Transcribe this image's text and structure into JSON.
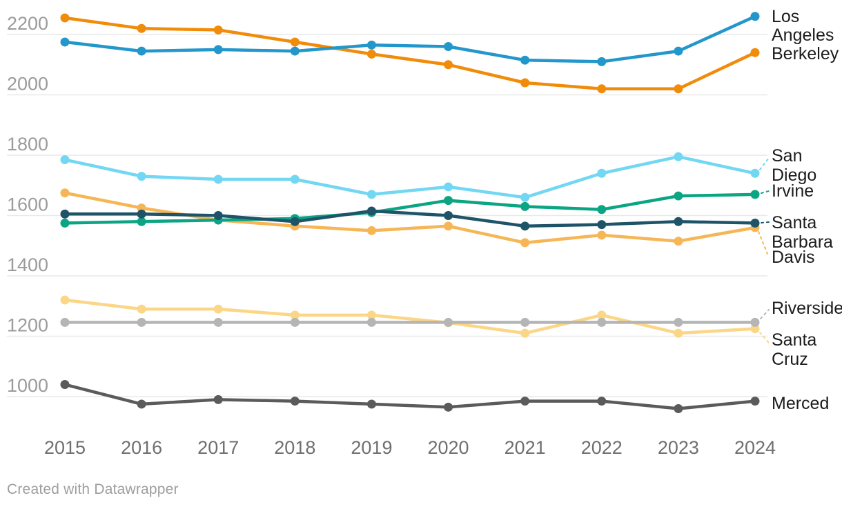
{
  "chart": {
    "footer": "Created with Datawrapper",
    "background": "#ffffff",
    "grid_color": "#e9e9e9",
    "y_tick_color": "#9b9b9b",
    "x_tick_color": "#6f6f6f",
    "label_color": "#1c1c1c"
  },
  "chart_data": {
    "type": "line",
    "x": [
      2015,
      2016,
      2017,
      2018,
      2019,
      2020,
      2021,
      2022,
      2023,
      2024
    ],
    "yticks": [
      1000,
      1200,
      1400,
      1600,
      1800,
      2000,
      2200
    ],
    "ylim": [
      930,
      2280
    ],
    "grid": "horizontal",
    "legend_position": "direct-right-labels",
    "series": [
      {
        "id": "los_angeles",
        "name": "Los Angeles",
        "label_lines": [
          "Los",
          "Angeles"
        ],
        "color": "#2397cb",
        "values": [
          2175,
          2145,
          2150,
          2145,
          2165,
          2160,
          2115,
          2110,
          2145,
          2260
        ]
      },
      {
        "id": "berkeley",
        "name": "Berkeley",
        "label_lines": [
          "Berkeley"
        ],
        "color": "#f08c0a",
        "values": [
          2255,
          2220,
          2215,
          2175,
          2135,
          2100,
          2040,
          2020,
          2020,
          2140
        ]
      },
      {
        "id": "san_diego",
        "name": "San Diego",
        "label_lines": [
          "San",
          "Diego"
        ],
        "color": "#72d7f2",
        "values": [
          1785,
          1730,
          1720,
          1720,
          1670,
          1695,
          1660,
          1740,
          1795,
          1740
        ]
      },
      {
        "id": "irvine",
        "name": "Irvine",
        "label_lines": [
          "Irvine"
        ],
        "color": "#0ca583",
        "values": [
          1575,
          1580,
          1585,
          1590,
          1610,
          1650,
          1630,
          1620,
          1665,
          1670
        ]
      },
      {
        "id": "santa_barbara",
        "name": "Santa Barbara",
        "label_lines": [
          "Santa",
          "Barbara"
        ],
        "color": "#1f5468",
        "values": [
          1605,
          1605,
          1600,
          1580,
          1615,
          1600,
          1565,
          1570,
          1580,
          1575
        ]
      },
      {
        "id": "davis",
        "name": "Davis",
        "label_lines": [
          "Davis"
        ],
        "color": "#f6b656",
        "values": [
          1675,
          1625,
          1585,
          1565,
          1550,
          1565,
          1510,
          1535,
          1515,
          1560
        ]
      },
      {
        "id": "riverside",
        "name": "Riverside",
        "label_lines": [
          "Riverside"
        ],
        "color": "#b5b5b5",
        "values": [
          1246,
          1246,
          1246,
          1246,
          1246,
          1246,
          1246,
          1246,
          1246,
          1246
        ]
      },
      {
        "id": "santa_cruz",
        "name": "Santa Cruz",
        "label_lines": [
          "Santa",
          "Cruz"
        ],
        "color": "#fcd687",
        "values": [
          1320,
          1290,
          1290,
          1270,
          1270,
          1245,
          1210,
          1270,
          1210,
          1225
        ]
      },
      {
        "id": "merced",
        "name": "Merced",
        "label_lines": [
          "Merced"
        ],
        "color": "#5b5b5b",
        "values": [
          1040,
          975,
          990,
          985,
          975,
          965,
          985,
          985,
          960,
          985
        ]
      }
    ]
  }
}
